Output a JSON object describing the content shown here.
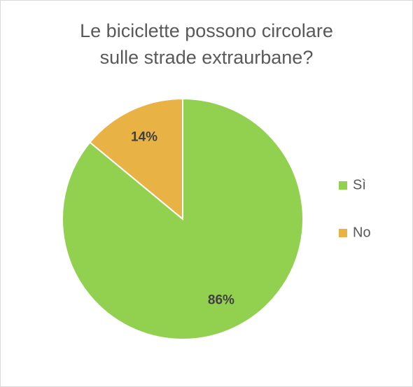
{
  "chart_data": {
    "type": "pie",
    "title": [
      "Le biciclette possono circolare",
      "sulle strade extraurbane?"
    ],
    "categories": [
      "Sì",
      "No"
    ],
    "values": [
      86,
      14
    ],
    "value_labels": [
      "86%",
      "14%"
    ],
    "colors": [
      "#92d050",
      "#e9b244"
    ],
    "legend": "right"
  }
}
